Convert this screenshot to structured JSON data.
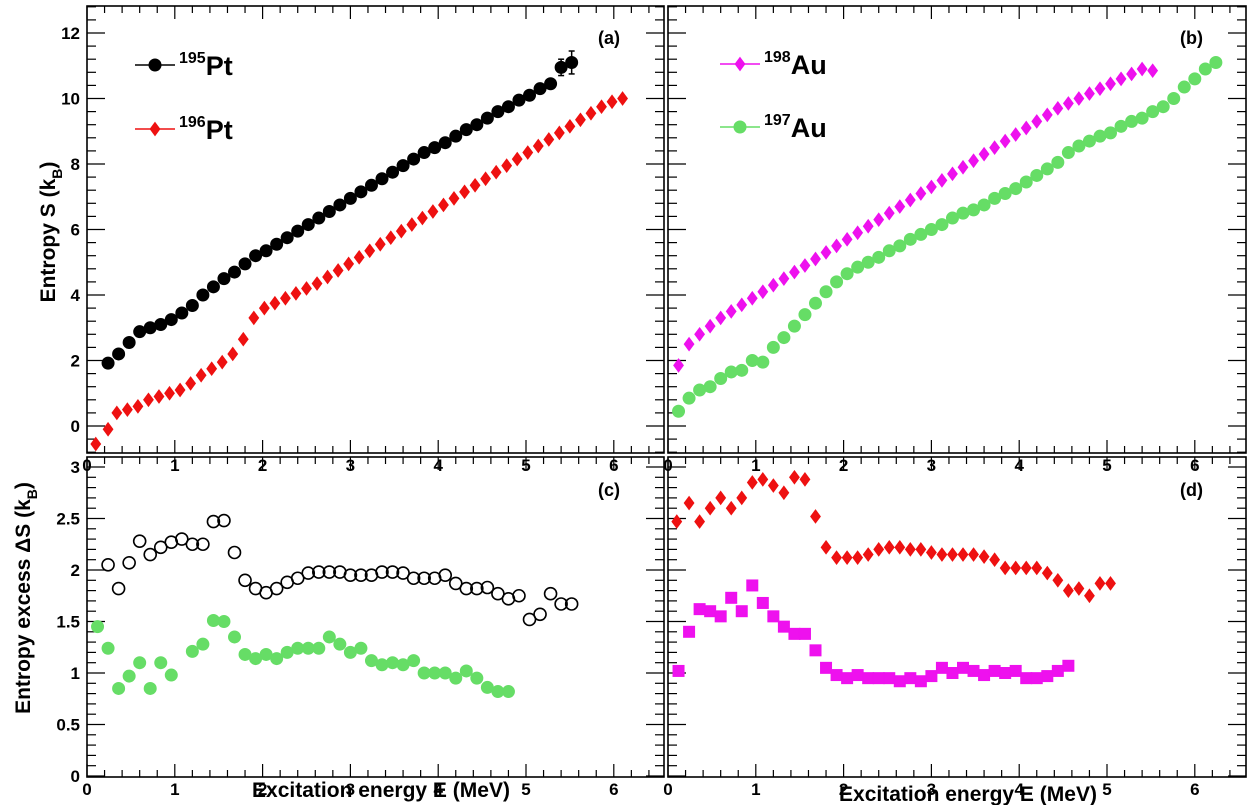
{
  "colors": {
    "pt195": "#000000",
    "pt196": "#ee1111",
    "au198": "#ee11ee",
    "au197": "#66dd66",
    "frame": "#000000"
  },
  "axes": {
    "xlabel": "Excitation energy E (MeV)",
    "ylabel_top": "Entropy S (k",
    "ylabel_top_sub": "B",
    "ylabel_top_close": ")",
    "ylabel_bottom": "Entropy excess ΔS (k",
    "ylabel_bottom_sub": "B",
    "ylabel_bottom_close": ")"
  },
  "chart_data": [
    {
      "type": "scatter",
      "panel_label": "(a)",
      "xlim": [
        0,
        6.5
      ],
      "ylim": [
        -0.8,
        12.8
      ],
      "x_ticks": [
        "0",
        "1",
        "2",
        "3",
        "4",
        "5",
        "6"
      ],
      "y_ticks": [
        "0",
        "2",
        "4",
        "6",
        "8",
        "10",
        "12"
      ],
      "legend_position": "top-left",
      "series": [
        {
          "name": "Pt",
          "mass_number": "195",
          "color_key": "pt195",
          "marker": "circle",
          "filled": true,
          "x": [
            0.24,
            0.36,
            0.48,
            0.6,
            0.72,
            0.84,
            0.96,
            1.08,
            1.2,
            1.32,
            1.44,
            1.56,
            1.68,
            1.8,
            1.92,
            2.04,
            2.16,
            2.28,
            2.4,
            2.52,
            2.64,
            2.76,
            2.88,
            3.0,
            3.12,
            3.24,
            3.36,
            3.48,
            3.6,
            3.72,
            3.84,
            3.96,
            4.08,
            4.2,
            4.32,
            4.44,
            4.56,
            4.68,
            4.8,
            4.92,
            5.04,
            5.16,
            5.28,
            5.4,
            5.52
          ],
          "y": [
            1.92,
            2.2,
            2.55,
            2.88,
            3.0,
            3.1,
            3.25,
            3.45,
            3.68,
            4.0,
            4.25,
            4.5,
            4.7,
            4.95,
            5.2,
            5.35,
            5.55,
            5.75,
            5.95,
            6.15,
            6.35,
            6.55,
            6.75,
            6.95,
            7.15,
            7.35,
            7.55,
            7.75,
            7.95,
            8.15,
            8.35,
            8.5,
            8.65,
            8.85,
            9.05,
            9.2,
            9.4,
            9.6,
            9.75,
            9.95,
            10.1,
            10.3,
            10.45,
            10.95,
            11.1
          ],
          "err": [
            0.05,
            0.05,
            0.05,
            0.05,
            0.05,
            0.05,
            0.05,
            0.05,
            0.05,
            0.05,
            0.05,
            0.05,
            0.05,
            0.05,
            0.05,
            0.05,
            0.05,
            0.05,
            0.05,
            0.05,
            0.05,
            0.05,
            0.05,
            0.05,
            0.05,
            0.05,
            0.05,
            0.05,
            0.05,
            0.05,
            0.05,
            0.05,
            0.05,
            0.05,
            0.05,
            0.05,
            0.05,
            0.05,
            0.05,
            0.05,
            0.05,
            0.05,
            0.05,
            0.25,
            0.35
          ]
        },
        {
          "name": "Pt",
          "mass_number": "196",
          "color_key": "pt196",
          "marker": "diamond",
          "filled": true,
          "x": [
            0.1,
            0.24,
            0.34,
            0.46,
            0.58,
            0.7,
            0.82,
            0.94,
            1.06,
            1.18,
            1.3,
            1.42,
            1.54,
            1.66,
            1.78,
            1.9,
            2.02,
            2.14,
            2.26,
            2.38,
            2.5,
            2.62,
            2.74,
            2.86,
            2.98,
            3.1,
            3.22,
            3.34,
            3.46,
            3.58,
            3.7,
            3.82,
            3.94,
            4.06,
            4.18,
            4.3,
            4.42,
            4.54,
            4.66,
            4.78,
            4.9,
            5.02,
            5.14,
            5.26,
            5.38,
            5.5,
            5.62,
            5.74,
            5.86,
            5.98,
            6.1
          ],
          "y": [
            -0.55,
            -0.1,
            0.4,
            0.5,
            0.6,
            0.8,
            0.9,
            1.0,
            1.1,
            1.3,
            1.55,
            1.75,
            1.95,
            2.2,
            2.65,
            3.3,
            3.6,
            3.75,
            3.9,
            4.05,
            4.2,
            4.35,
            4.55,
            4.75,
            4.95,
            5.15,
            5.35,
            5.55,
            5.75,
            5.95,
            6.15,
            6.35,
            6.55,
            6.75,
            6.95,
            7.15,
            7.35,
            7.55,
            7.75,
            7.95,
            8.15,
            8.35,
            8.55,
            8.75,
            8.95,
            9.15,
            9.35,
            9.55,
            9.75,
            9.9,
            10.0
          ],
          "err": []
        }
      ]
    },
    {
      "type": "scatter",
      "panel_label": "(b)",
      "xlim": [
        0,
        6.5
      ],
      "ylim": [
        -0.8,
        12.8
      ],
      "x_ticks": [
        "0",
        "1",
        "2",
        "3",
        "4",
        "5",
        "6"
      ],
      "y_ticks": [],
      "legend_position": "top-left",
      "series": [
        {
          "name": "Au",
          "mass_number": "198",
          "color_key": "au198",
          "marker": "diamond",
          "filled": true,
          "x": [
            0.12,
            0.24,
            0.36,
            0.48,
            0.6,
            0.72,
            0.84,
            0.96,
            1.08,
            1.2,
            1.32,
            1.44,
            1.56,
            1.68,
            1.8,
            1.92,
            2.04,
            2.16,
            2.28,
            2.4,
            2.52,
            2.64,
            2.76,
            2.88,
            3.0,
            3.12,
            3.24,
            3.36,
            3.48,
            3.6,
            3.72,
            3.84,
            3.96,
            4.08,
            4.2,
            4.32,
            4.44,
            4.56,
            4.68,
            4.8,
            4.92,
            5.04,
            5.16,
            5.28,
            5.4,
            5.52
          ],
          "y": [
            1.85,
            2.5,
            2.8,
            3.05,
            3.3,
            3.5,
            3.7,
            3.9,
            4.1,
            4.3,
            4.5,
            4.7,
            4.9,
            5.1,
            5.3,
            5.5,
            5.7,
            5.9,
            6.1,
            6.3,
            6.5,
            6.7,
            6.9,
            7.1,
            7.3,
            7.5,
            7.7,
            7.9,
            8.1,
            8.3,
            8.5,
            8.7,
            8.9,
            9.1,
            9.3,
            9.5,
            9.7,
            9.85,
            10.0,
            10.15,
            10.3,
            10.45,
            10.6,
            10.75,
            10.9,
            10.85
          ],
          "err": []
        },
        {
          "name": "Au",
          "mass_number": "197",
          "color_key": "au197",
          "marker": "circle",
          "filled": true,
          "x": [
            0.12,
            0.24,
            0.36,
            0.48,
            0.6,
            0.72,
            0.84,
            0.96,
            1.08,
            1.2,
            1.32,
            1.44,
            1.56,
            1.68,
            1.8,
            1.92,
            2.04,
            2.16,
            2.28,
            2.4,
            2.52,
            2.64,
            2.76,
            2.88,
            3.0,
            3.12,
            3.24,
            3.36,
            3.48,
            3.6,
            3.72,
            3.84,
            3.96,
            4.08,
            4.2,
            4.32,
            4.44,
            4.56,
            4.68,
            4.8,
            4.92,
            5.04,
            5.16,
            5.28,
            5.4,
            5.52,
            5.64,
            5.76,
            5.88,
            6.0,
            6.12,
            6.24
          ],
          "y": [
            0.45,
            0.85,
            1.1,
            1.2,
            1.45,
            1.65,
            1.7,
            2.0,
            1.95,
            2.4,
            2.7,
            3.05,
            3.4,
            3.75,
            4.1,
            4.4,
            4.65,
            4.85,
            5.0,
            5.15,
            5.35,
            5.5,
            5.7,
            5.85,
            6.0,
            6.15,
            6.35,
            6.5,
            6.6,
            6.75,
            6.95,
            7.1,
            7.25,
            7.45,
            7.65,
            7.85,
            8.05,
            8.35,
            8.55,
            8.7,
            8.85,
            8.95,
            9.15,
            9.3,
            9.4,
            9.6,
            9.75,
            10.0,
            10.35,
            10.6,
            10.9,
            11.1
          ],
          "err": []
        }
      ]
    },
    {
      "type": "scatter",
      "panel_label": "(c)",
      "xlim": [
        0,
        6.5
      ],
      "ylim": [
        -0.02,
        3.1
      ],
      "x_ticks": [
        "0",
        "1",
        "2",
        "3",
        "4",
        "5",
        "6"
      ],
      "y_ticks": [
        "0",
        "0.5",
        "1",
        "1.5",
        "2",
        "2.5",
        "3"
      ],
      "series": [
        {
          "color_key": "pt195",
          "marker": "circle",
          "filled": false,
          "x": [
            0.24,
            0.36,
            0.48,
            0.6,
            0.72,
            0.84,
            0.96,
            1.08,
            1.2,
            1.32,
            1.44,
            1.56,
            1.68,
            1.8,
            1.92,
            2.04,
            2.16,
            2.28,
            2.4,
            2.52,
            2.64,
            2.76,
            2.88,
            3.0,
            3.12,
            3.24,
            3.36,
            3.48,
            3.6,
            3.72,
            3.84,
            3.96,
            4.08,
            4.2,
            4.32,
            4.44,
            4.56,
            4.68,
            4.8,
            4.92,
            5.04,
            5.16,
            5.28,
            5.4,
            5.52
          ],
          "y": [
            2.05,
            1.82,
            2.07,
            2.28,
            2.15,
            2.22,
            2.27,
            2.3,
            2.25,
            2.25,
            2.47,
            2.48,
            2.17,
            1.9,
            1.82,
            1.78,
            1.82,
            1.88,
            1.92,
            1.97,
            1.98,
            1.98,
            1.98,
            1.95,
            1.95,
            1.95,
            1.98,
            1.98,
            1.97,
            1.92,
            1.92,
            1.92,
            1.95,
            1.87,
            1.82,
            1.82,
            1.83,
            1.77,
            1.72,
            1.75,
            1.52,
            1.57,
            1.77,
            1.67,
            1.67
          ],
          "err": []
        },
        {
          "color_key": "au197",
          "marker": "circle",
          "filled": true,
          "x": [
            0.12,
            0.24,
            0.36,
            0.48,
            0.6,
            0.72,
            0.84,
            0.96,
            1.2,
            1.32,
            1.44,
            1.56,
            1.68,
            1.8,
            1.92,
            2.04,
            2.16,
            2.28,
            2.4,
            2.52,
            2.64,
            2.76,
            2.88,
            3.0,
            3.12,
            3.24,
            3.36,
            3.48,
            3.6,
            3.72,
            3.84,
            3.96,
            4.08,
            4.2,
            4.32,
            4.44,
            4.56,
            4.68,
            4.8
          ],
          "y": [
            1.45,
            1.24,
            0.85,
            0.97,
            1.1,
            0.85,
            1.1,
            0.98,
            1.21,
            1.28,
            1.51,
            1.5,
            1.35,
            1.18,
            1.14,
            1.18,
            1.14,
            1.2,
            1.24,
            1.24,
            1.24,
            1.35,
            1.28,
            1.2,
            1.24,
            1.12,
            1.08,
            1.1,
            1.08,
            1.12,
            1.0,
            1.0,
            1.0,
            0.95,
            1.02,
            0.95,
            0.86,
            0.82,
            0.82
          ],
          "err": []
        }
      ]
    },
    {
      "type": "scatter",
      "panel_label": "(d)",
      "xlim": [
        0,
        6.5
      ],
      "ylim": [
        -0.02,
        3.1
      ],
      "x_ticks": [
        "0",
        "1",
        "2",
        "3",
        "4",
        "5",
        "6"
      ],
      "y_ticks": [],
      "series": [
        {
          "color_key": "pt196",
          "marker": "diamond",
          "filled": true,
          "x": [
            0.1,
            0.24,
            0.36,
            0.48,
            0.6,
            0.72,
            0.84,
            0.96,
            1.08,
            1.2,
            1.32,
            1.44,
            1.56,
            1.68,
            1.8,
            1.92,
            2.04,
            2.16,
            2.28,
            2.4,
            2.52,
            2.64,
            2.76,
            2.88,
            3.0,
            3.12,
            3.24,
            3.36,
            3.48,
            3.6,
            3.72,
            3.84,
            3.96,
            4.08,
            4.2,
            4.32,
            4.44,
            4.56,
            4.68,
            4.8,
            4.92,
            5.04
          ],
          "y": [
            2.47,
            2.65,
            2.47,
            2.6,
            2.7,
            2.6,
            2.7,
            2.85,
            2.88,
            2.82,
            2.75,
            2.9,
            2.88,
            2.52,
            2.22,
            2.12,
            2.12,
            2.12,
            2.15,
            2.2,
            2.22,
            2.22,
            2.2,
            2.2,
            2.17,
            2.15,
            2.15,
            2.15,
            2.15,
            2.13,
            2.1,
            2.02,
            2.02,
            2.02,
            2.02,
            1.97,
            1.9,
            1.8,
            1.82,
            1.75,
            1.87,
            1.87
          ],
          "err": []
        },
        {
          "color_key": "au198",
          "marker": "square",
          "filled": true,
          "x": [
            0.12,
            0.24,
            0.36,
            0.48,
            0.6,
            0.72,
            0.84,
            0.96,
            1.08,
            1.2,
            1.32,
            1.44,
            1.56,
            1.68,
            1.8,
            1.92,
            2.04,
            2.16,
            2.28,
            2.4,
            2.52,
            2.64,
            2.76,
            2.88,
            3.0,
            3.12,
            3.24,
            3.36,
            3.48,
            3.6,
            3.72,
            3.84,
            3.96,
            4.08,
            4.2,
            4.32,
            4.44,
            4.56
          ],
          "y": [
            1.02,
            1.4,
            1.62,
            1.6,
            1.55,
            1.73,
            1.6,
            1.85,
            1.68,
            1.55,
            1.45,
            1.38,
            1.38,
            1.22,
            1.05,
            0.98,
            0.95,
            0.98,
            0.95,
            0.95,
            0.95,
            0.92,
            0.95,
            0.92,
            0.97,
            1.05,
            1.0,
            1.05,
            1.02,
            0.98,
            1.02,
            1.0,
            1.02,
            0.95,
            0.95,
            0.97,
            1.02,
            1.07
          ],
          "err": []
        }
      ]
    }
  ]
}
